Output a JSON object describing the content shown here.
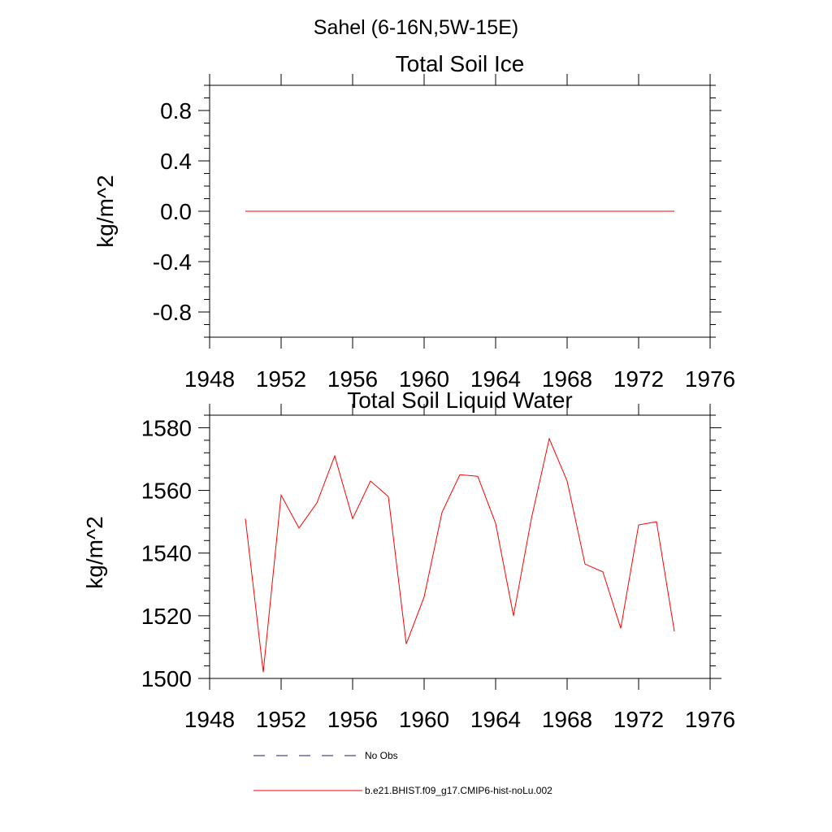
{
  "suptitle": "Sahel (6-16N,5W-15E)",
  "colors": {
    "model": "#ff0000",
    "obs": "#1a1a6e",
    "axis": "#000000"
  },
  "chart_data": [
    {
      "type": "line",
      "title": "Total Soil Ice",
      "xlabel": "",
      "ylabel": "kg/m^2",
      "xlim": [
        1948,
        1976
      ],
      "ylim": [
        -1.0,
        1.0
      ],
      "xticks": [
        1948,
        1952,
        1956,
        1960,
        1964,
        1968,
        1972,
        1976
      ],
      "xtick_labels": [
        "1948",
        "1952",
        "1956",
        "1960",
        "1964",
        "1968",
        "1972",
        "1976"
      ],
      "yticks": [
        -0.8,
        -0.4,
        0.0,
        0.4,
        0.8
      ],
      "ytick_labels": [
        "-0.8",
        "-0.4",
        "0.0",
        "0.4",
        "0.8"
      ],
      "grid": false,
      "series": [
        {
          "name": "b.e21.BHIST.f09_g17.CMIP6-hist-noLu.002",
          "x": [
            1950,
            1951,
            1952,
            1953,
            1954,
            1955,
            1956,
            1957,
            1958,
            1959,
            1960,
            1961,
            1962,
            1963,
            1964,
            1965,
            1966,
            1967,
            1968,
            1969,
            1970,
            1971,
            1972,
            1973,
            1974
          ],
          "values": [
            0,
            0,
            0,
            0,
            0,
            0,
            0,
            0,
            0,
            0,
            0,
            0,
            0,
            0,
            0,
            0,
            0,
            0,
            0,
            0,
            0,
            0,
            0,
            0,
            0
          ]
        }
      ]
    },
    {
      "type": "line",
      "title": "Total Soil Liquid Water",
      "xlabel": "",
      "ylabel": "kg/m^2",
      "xlim": [
        1948,
        1976
      ],
      "ylim": [
        1500,
        1584
      ],
      "xticks": [
        1948,
        1952,
        1956,
        1960,
        1964,
        1968,
        1972,
        1976
      ],
      "xtick_labels": [
        "1948",
        "1952",
        "1956",
        "1960",
        "1964",
        "1968",
        "1972",
        "1976"
      ],
      "yticks": [
        1500,
        1520,
        1540,
        1560,
        1580
      ],
      "ytick_labels": [
        "1500",
        "1520",
        "1540",
        "1560",
        "1580"
      ],
      "grid": false,
      "series": [
        {
          "name": "b.e21.BHIST.f09_g17.CMIP6-hist-noLu.002",
          "x": [
            1950,
            1951,
            1952,
            1953,
            1954,
            1955,
            1956,
            1957,
            1958,
            1959,
            1960,
            1961,
            1962,
            1963,
            1964,
            1965,
            1966,
            1967,
            1968,
            1969,
            1970,
            1971,
            1972,
            1973,
            1974
          ],
          "values": [
            1551,
            1502,
            1558.5,
            1548,
            1556,
            1571,
            1551,
            1563,
            1558,
            1511,
            1526,
            1553,
            1565,
            1564.5,
            1549.5,
            1520,
            1551,
            1576.5,
            1563,
            1536.5,
            1534,
            1516,
            1549,
            1550,
            1515
          ]
        }
      ]
    }
  ],
  "legend": {
    "placement": "bottom",
    "items": [
      {
        "label": "No Obs",
        "style": "dashed",
        "color": "#1a1a6e"
      },
      {
        "label": "b.e21.BHIST.f09_g17.CMIP6-hist-noLu.002",
        "style": "solid",
        "color": "#ff0000"
      }
    ]
  }
}
